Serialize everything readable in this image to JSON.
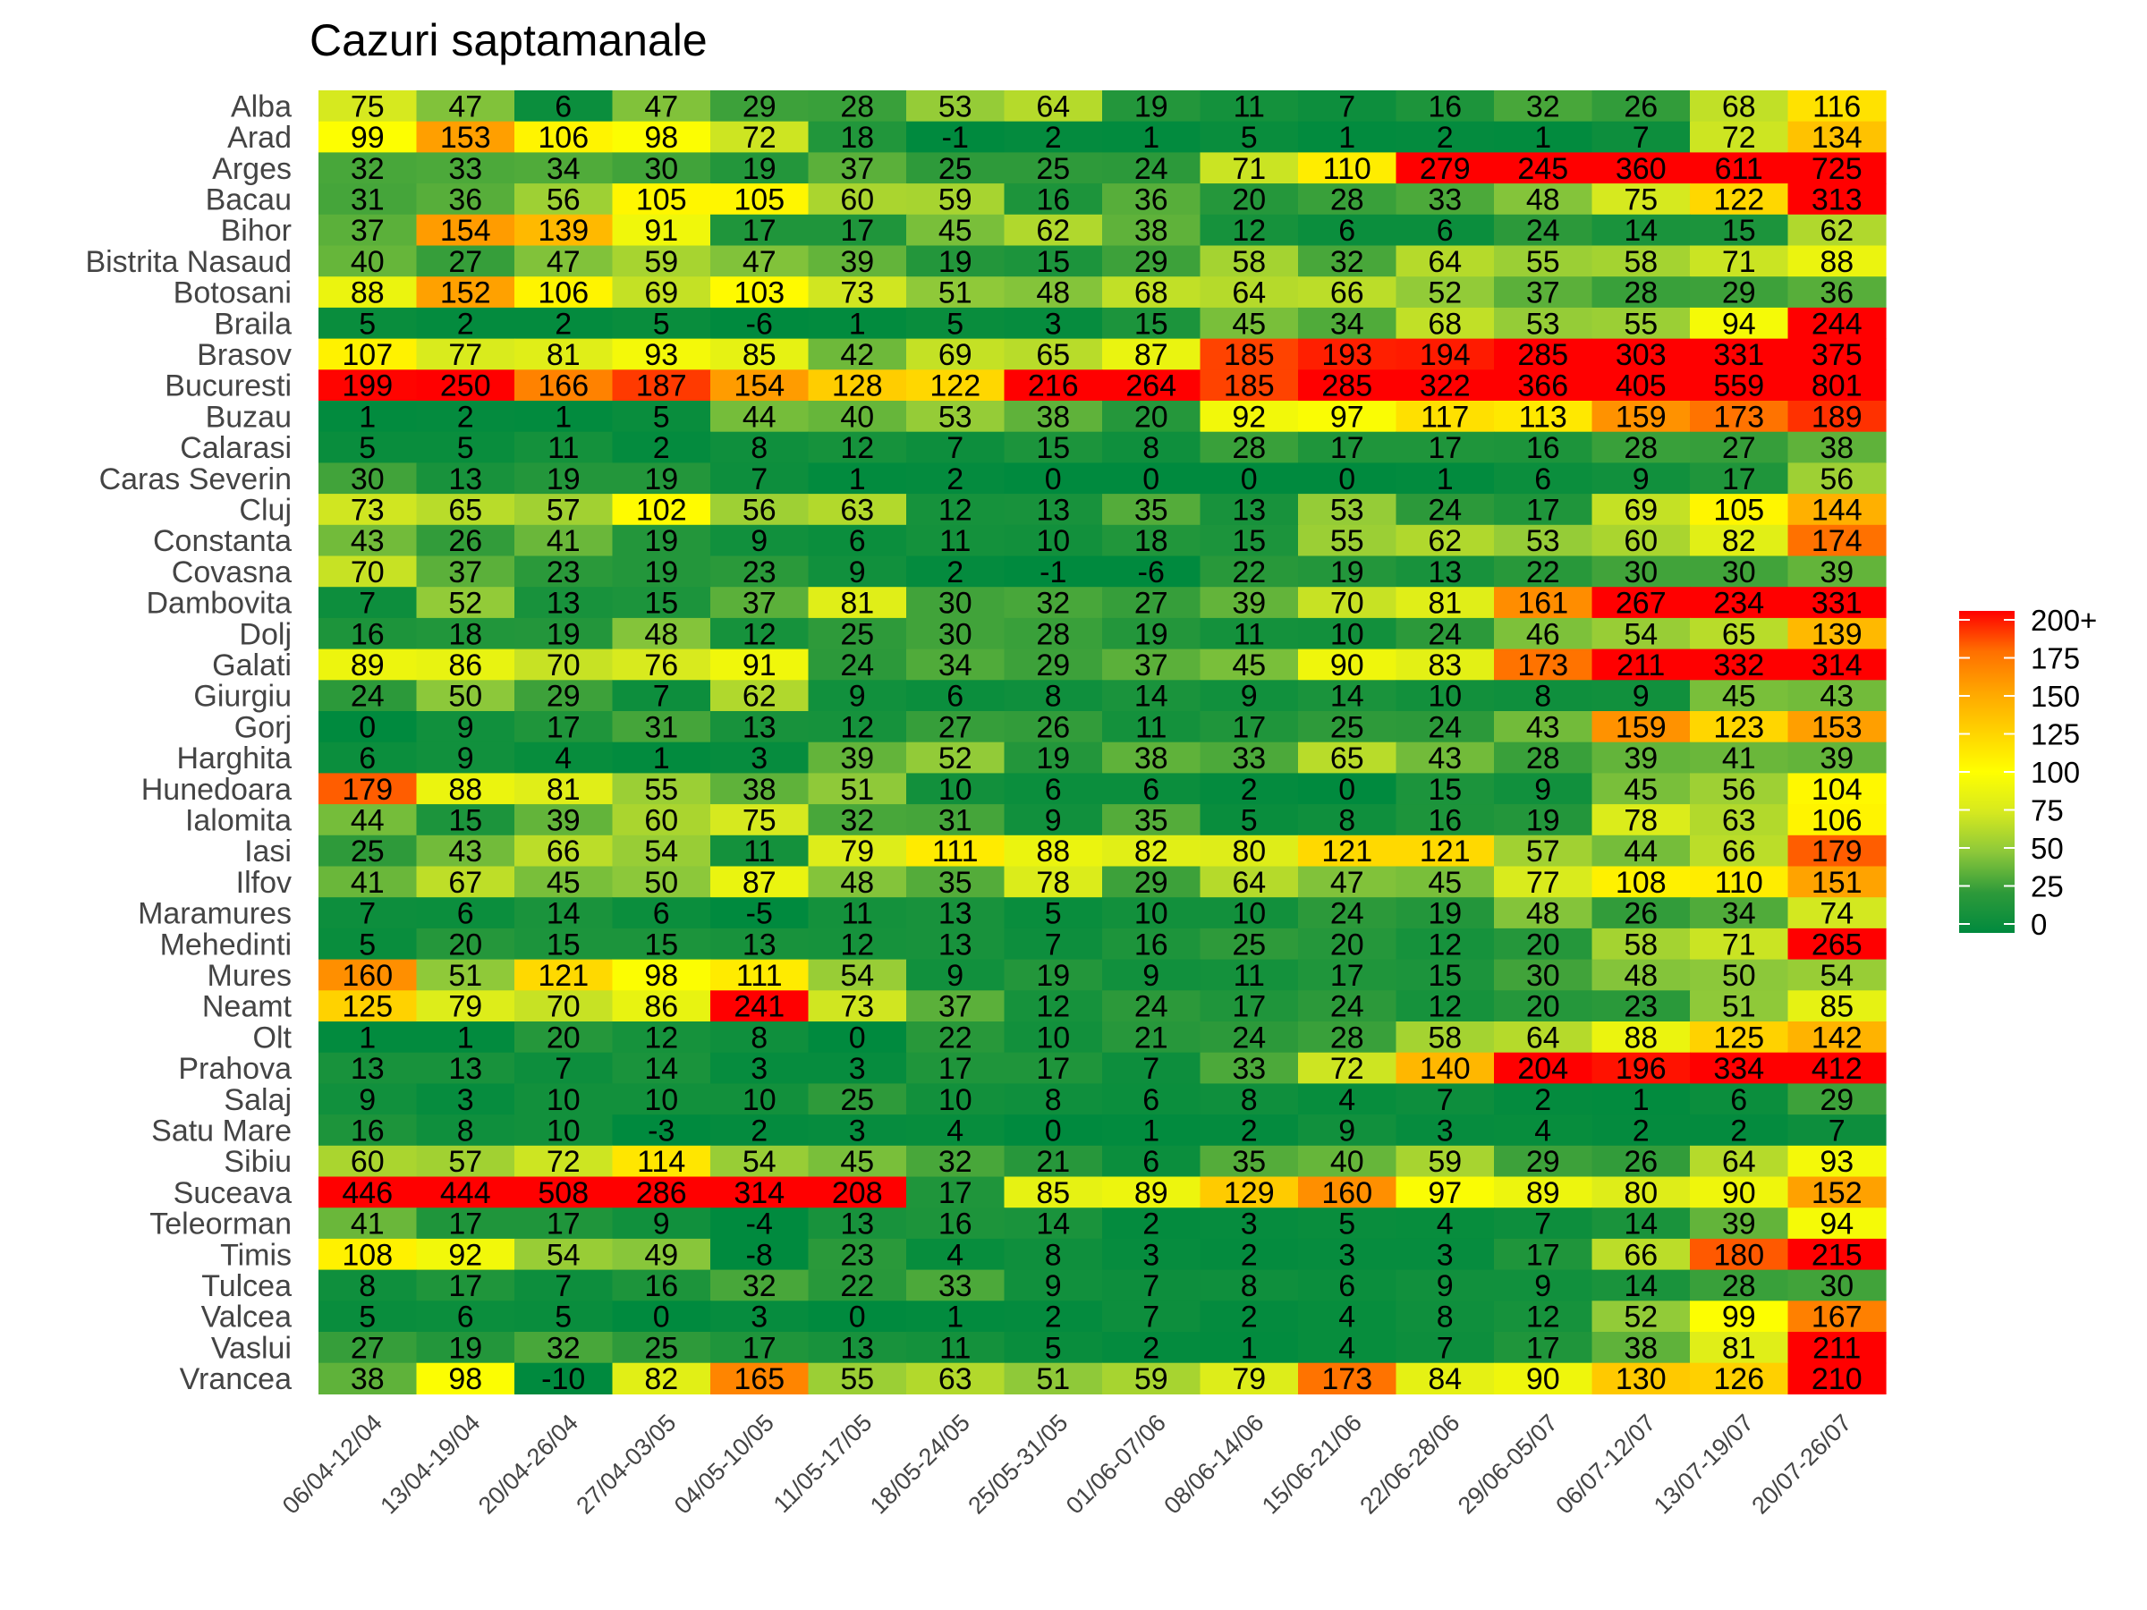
{
  "chart_data": {
    "type": "heatmap",
    "title": "Cazuri saptamanale",
    "xlabel": "",
    "ylabel": "",
    "columns": [
      "06/04-12/04",
      "13/04-19/04",
      "20/04-26/04",
      "27/04-03/05",
      "04/05-10/05",
      "11/05-17/05",
      "18/05-24/05",
      "25/05-31/05",
      "01/06-07/06",
      "08/06-14/06",
      "15/06-21/06",
      "22/06-28/06",
      "29/06-05/07",
      "06/07-12/07",
      "13/07-19/07",
      "20/07-26/07"
    ],
    "rows": [
      "Alba",
      "Arad",
      "Arges",
      "Bacau",
      "Bihor",
      "Bistrita Nasaud",
      "Botosani",
      "Braila",
      "Brasov",
      "Bucuresti",
      "Buzau",
      "Calarasi",
      "Caras Severin",
      "Cluj",
      "Constanta",
      "Covasna",
      "Dambovita",
      "Dolj",
      "Galati",
      "Giurgiu",
      "Gorj",
      "Harghita",
      "Hunedoara",
      "Ialomita",
      "Iasi",
      "Ilfov",
      "Maramures",
      "Mehedinti",
      "Mures",
      "Neamt",
      "Olt",
      "Prahova",
      "Salaj",
      "Satu Mare",
      "Sibiu",
      "Suceava",
      "Teleorman",
      "Timis",
      "Tulcea",
      "Valcea",
      "Vaslui",
      "Vrancea"
    ],
    "values": [
      [
        75,
        47,
        6,
        47,
        29,
        28,
        53,
        64,
        19,
        11,
        7,
        16,
        32,
        26,
        68,
        116
      ],
      [
        99,
        153,
        106,
        98,
        72,
        18,
        -1,
        2,
        1,
        5,
        1,
        2,
        1,
        7,
        72,
        134
      ],
      [
        32,
        33,
        34,
        30,
        19,
        37,
        25,
        25,
        24,
        71,
        110,
        279,
        245,
        360,
        611,
        725
      ],
      [
        31,
        36,
        56,
        105,
        105,
        60,
        59,
        16,
        36,
        20,
        28,
        33,
        48,
        75,
        122,
        313
      ],
      [
        37,
        154,
        139,
        91,
        17,
        17,
        45,
        62,
        38,
        12,
        6,
        6,
        24,
        14,
        15,
        62
      ],
      [
        40,
        27,
        47,
        59,
        47,
        39,
        19,
        15,
        29,
        58,
        32,
        64,
        55,
        58,
        71,
        88
      ],
      [
        88,
        152,
        106,
        69,
        103,
        73,
        51,
        48,
        68,
        64,
        66,
        52,
        37,
        28,
        29,
        36
      ],
      [
        5,
        2,
        2,
        5,
        -6,
        1,
        5,
        3,
        15,
        45,
        34,
        68,
        53,
        55,
        94,
        244
      ],
      [
        107,
        77,
        81,
        93,
        85,
        42,
        69,
        65,
        87,
        185,
        193,
        194,
        285,
        303,
        331,
        375
      ],
      [
        199,
        250,
        166,
        187,
        154,
        128,
        122,
        216,
        264,
        185,
        285,
        322,
        366,
        405,
        559,
        801
      ],
      [
        1,
        2,
        1,
        5,
        44,
        40,
        53,
        38,
        20,
        92,
        97,
        117,
        113,
        159,
        173,
        189
      ],
      [
        5,
        5,
        11,
        2,
        8,
        12,
        7,
        15,
        8,
        28,
        17,
        17,
        16,
        28,
        27,
        38
      ],
      [
        30,
        13,
        19,
        19,
        7,
        1,
        2,
        0,
        0,
        0,
        0,
        1,
        6,
        9,
        17,
        56
      ],
      [
        73,
        65,
        57,
        102,
        56,
        63,
        12,
        13,
        35,
        13,
        53,
        24,
        17,
        69,
        105,
        144
      ],
      [
        43,
        26,
        41,
        19,
        9,
        6,
        11,
        10,
        18,
        15,
        55,
        62,
        53,
        60,
        82,
        174
      ],
      [
        70,
        37,
        23,
        19,
        23,
        9,
        2,
        -1,
        -6,
        22,
        19,
        13,
        22,
        30,
        30,
        39
      ],
      [
        7,
        52,
        13,
        15,
        37,
        81,
        30,
        32,
        27,
        39,
        70,
        81,
        161,
        267,
        234,
        331
      ],
      [
        16,
        18,
        19,
        48,
        12,
        25,
        30,
        28,
        19,
        11,
        10,
        24,
        46,
        54,
        65,
        139
      ],
      [
        89,
        86,
        70,
        76,
        91,
        24,
        34,
        29,
        37,
        45,
        90,
        83,
        173,
        211,
        332,
        314
      ],
      [
        24,
        50,
        29,
        7,
        62,
        9,
        6,
        8,
        14,
        9,
        14,
        10,
        8,
        9,
        45,
        43
      ],
      [
        0,
        9,
        17,
        31,
        13,
        12,
        27,
        26,
        11,
        17,
        25,
        24,
        43,
        159,
        123,
        153
      ],
      [
        6,
        9,
        4,
        1,
        3,
        39,
        52,
        19,
        38,
        33,
        65,
        43,
        28,
        39,
        41,
        39
      ],
      [
        179,
        88,
        81,
        55,
        38,
        51,
        10,
        6,
        6,
        2,
        0,
        15,
        9,
        45,
        56,
        104
      ],
      [
        44,
        15,
        39,
        60,
        75,
        32,
        31,
        9,
        35,
        5,
        8,
        16,
        19,
        78,
        63,
        106
      ],
      [
        25,
        43,
        66,
        54,
        11,
        79,
        111,
        88,
        82,
        80,
        121,
        121,
        57,
        44,
        66,
        179
      ],
      [
        41,
        67,
        45,
        50,
        87,
        48,
        35,
        78,
        29,
        64,
        47,
        45,
        77,
        108,
        110,
        151
      ],
      [
        7,
        6,
        14,
        6,
        -5,
        11,
        13,
        5,
        10,
        10,
        24,
        19,
        48,
        26,
        34,
        74
      ],
      [
        5,
        20,
        15,
        15,
        13,
        12,
        13,
        7,
        16,
        25,
        20,
        12,
        20,
        58,
        71,
        265
      ],
      [
        160,
        51,
        121,
        98,
        111,
        54,
        9,
        19,
        9,
        11,
        17,
        15,
        30,
        48,
        50,
        54
      ],
      [
        125,
        79,
        70,
        86,
        241,
        73,
        37,
        12,
        24,
        17,
        24,
        12,
        20,
        23,
        51,
        85
      ],
      [
        1,
        1,
        20,
        12,
        8,
        0,
        22,
        10,
        21,
        24,
        28,
        58,
        64,
        88,
        125,
        142
      ],
      [
        13,
        13,
        7,
        14,
        3,
        3,
        17,
        17,
        7,
        33,
        72,
        140,
        204,
        196,
        334,
        412
      ],
      [
        9,
        3,
        10,
        10,
        10,
        25,
        10,
        8,
        6,
        8,
        4,
        7,
        2,
        1,
        6,
        29
      ],
      [
        16,
        8,
        10,
        -3,
        2,
        3,
        4,
        0,
        1,
        2,
        9,
        3,
        4,
        2,
        2,
        7
      ],
      [
        60,
        57,
        72,
        114,
        54,
        45,
        32,
        21,
        6,
        35,
        40,
        59,
        29,
        26,
        64,
        93
      ],
      [
        446,
        444,
        508,
        286,
        314,
        208,
        17,
        85,
        89,
        129,
        160,
        97,
        89,
        80,
        90,
        152
      ],
      [
        41,
        17,
        17,
        9,
        -4,
        13,
        16,
        14,
        2,
        3,
        5,
        4,
        7,
        14,
        39,
        94
      ],
      [
        108,
        92,
        54,
        49,
        -8,
        23,
        4,
        8,
        3,
        2,
        3,
        3,
        17,
        66,
        180,
        215
      ],
      [
        8,
        17,
        7,
        16,
        32,
        22,
        33,
        9,
        7,
        8,
        6,
        9,
        9,
        14,
        28,
        30
      ],
      [
        5,
        6,
        5,
        0,
        3,
        0,
        1,
        2,
        7,
        2,
        4,
        8,
        12,
        52,
        99,
        167
      ],
      [
        27,
        19,
        32,
        25,
        17,
        13,
        11,
        5,
        2,
        1,
        4,
        7,
        17,
        38,
        81,
        211
      ],
      [
        38,
        98,
        -10,
        82,
        165,
        55,
        63,
        51,
        59,
        79,
        173,
        84,
        90,
        130,
        126,
        210
      ]
    ],
    "color_scale": {
      "min": 0,
      "max": 200,
      "stops": [
        {
          "value": 0,
          "color": "#008a3e"
        },
        {
          "value": 25,
          "color": "#2e9a3a"
        },
        {
          "value": 50,
          "color": "#8cc83a"
        },
        {
          "value": 75,
          "color": "#d6e91f"
        },
        {
          "value": 100,
          "color": "#ffff00"
        },
        {
          "value": 125,
          "color": "#ffd200"
        },
        {
          "value": 150,
          "color": "#ffa500"
        },
        {
          "value": 175,
          "color": "#ff6f00"
        },
        {
          "value": 200,
          "color": "#ff0000"
        }
      ]
    },
    "legend": {
      "position": "right",
      "ticks": [
        "0",
        "25",
        "50",
        "75",
        "100",
        "125",
        "150",
        "175",
        "200+"
      ]
    }
  }
}
